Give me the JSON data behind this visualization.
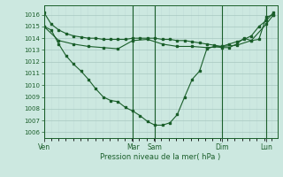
{
  "xlabel": "Pression niveau de la mer( hPa )",
  "bg_color": "#cce8e0",
  "grid_color_major": "#a8c8c0",
  "grid_color_minor": "#c0dcd8",
  "line_color": "#1a5e2a",
  "ylim": [
    1005.5,
    1016.8
  ],
  "yticks": [
    1006,
    1007,
    1008,
    1009,
    1010,
    1011,
    1012,
    1013,
    1014,
    1015,
    1016
  ],
  "day_labels": [
    "Ven",
    "Mar",
    "Sam",
    "Dim",
    "Lun"
  ],
  "day_positions": [
    0.0,
    0.4,
    0.5,
    0.8,
    1.0
  ],
  "xlim": [
    0.0,
    1.05
  ],
  "line1_x": [
    0.0,
    0.033,
    0.067,
    0.1,
    0.133,
    0.167,
    0.2,
    0.233,
    0.267,
    0.3,
    0.333,
    0.367,
    0.4,
    0.433,
    0.467,
    0.5,
    0.533,
    0.567,
    0.6,
    0.633,
    0.667,
    0.7,
    0.733,
    0.767,
    0.8,
    0.833,
    0.867,
    0.9,
    0.933,
    0.967,
    1.0,
    1.033
  ],
  "line1_y": [
    1016.2,
    1015.2,
    1014.7,
    1014.4,
    1014.2,
    1014.1,
    1014.0,
    1014.0,
    1013.9,
    1013.9,
    1013.9,
    1013.9,
    1014.0,
    1014.0,
    1014.0,
    1014.0,
    1013.9,
    1013.9,
    1013.8,
    1013.8,
    1013.7,
    1013.6,
    1013.5,
    1013.4,
    1013.3,
    1013.5,
    1013.7,
    1013.9,
    1014.2,
    1015.0,
    1015.5,
    1016.2
  ],
  "line2_x": [
    0.0,
    0.033,
    0.067,
    0.1,
    0.133,
    0.167,
    0.2,
    0.233,
    0.267,
    0.3,
    0.333,
    0.367,
    0.4,
    0.433,
    0.467,
    0.5,
    0.533,
    0.567,
    0.6,
    0.633,
    0.667,
    0.7,
    0.733,
    0.767,
    0.8,
    0.833,
    0.867,
    0.9,
    0.933,
    0.967,
    1.0,
    1.033
  ],
  "line2_y": [
    1015.0,
    1014.7,
    1013.5,
    1012.5,
    1011.8,
    1011.2,
    1010.5,
    1009.7,
    1009.0,
    1008.7,
    1008.6,
    1008.1,
    1007.8,
    1007.4,
    1006.9,
    1006.6,
    1006.6,
    1006.8,
    1007.5,
    1009.0,
    1010.5,
    1011.2,
    1013.1,
    1013.3,
    1013.2,
    1013.2,
    1013.5,
    1014.0,
    1013.8,
    1013.9,
    1015.8,
    1016.0
  ],
  "line3_x": [
    0.0,
    0.067,
    0.133,
    0.2,
    0.267,
    0.333,
    0.4,
    0.467,
    0.533,
    0.6,
    0.667,
    0.733,
    0.8,
    0.867,
    0.933,
    1.0,
    1.033
  ],
  "line3_y": [
    1015.0,
    1013.8,
    1013.5,
    1013.3,
    1013.2,
    1013.1,
    1013.8,
    1013.9,
    1013.5,
    1013.3,
    1013.3,
    1013.2,
    1013.3,
    1013.4,
    1013.8,
    1015.2,
    1016.0
  ]
}
